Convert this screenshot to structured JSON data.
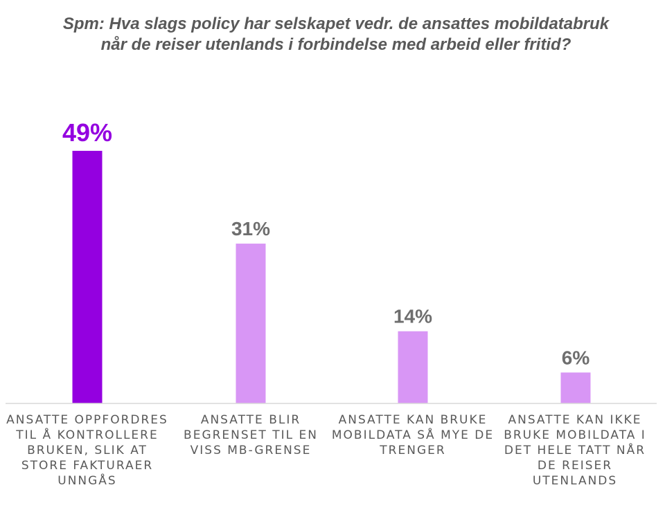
{
  "chart_data": {
    "type": "bar",
    "title_lines": [
      "Spm: Hva slags policy har selskapet vedr. de ansattes mobildatabruk",
      "når de reiser utenlands i forbindelse med arbeid eller fritid?"
    ],
    "categories": [
      "ANSATTE OPPFORDRES TIL Å KONTROLLERE BRUKEN, SLIK AT STORE FAKTURAER UNNGÅS",
      "ANSATTE BLIR BEGRENSET TIL EN VISS MB-GRENSE",
      "ANSATTE KAN BRUKE MOBILDATA SÅ MYE DE TRENGER",
      "ANSATTE KAN IKKE BRUKE MOBILDATA I DET HELE TATT NÅR DE REISER UTENLANDS"
    ],
    "values": [
      49,
      31,
      14,
      6
    ],
    "value_labels": [
      "49%",
      "31%",
      "14%",
      "6%"
    ],
    "unit": "%",
    "ylim": [
      0,
      55
    ],
    "grid": false,
    "legend": "none",
    "colors": {
      "highlight_bar": "#9400E0",
      "bar": "#D896F5",
      "highlight_label": "#9400E0",
      "label": "#6E6E6E",
      "baseline": "#D9D9D9",
      "title": "#595959"
    }
  }
}
